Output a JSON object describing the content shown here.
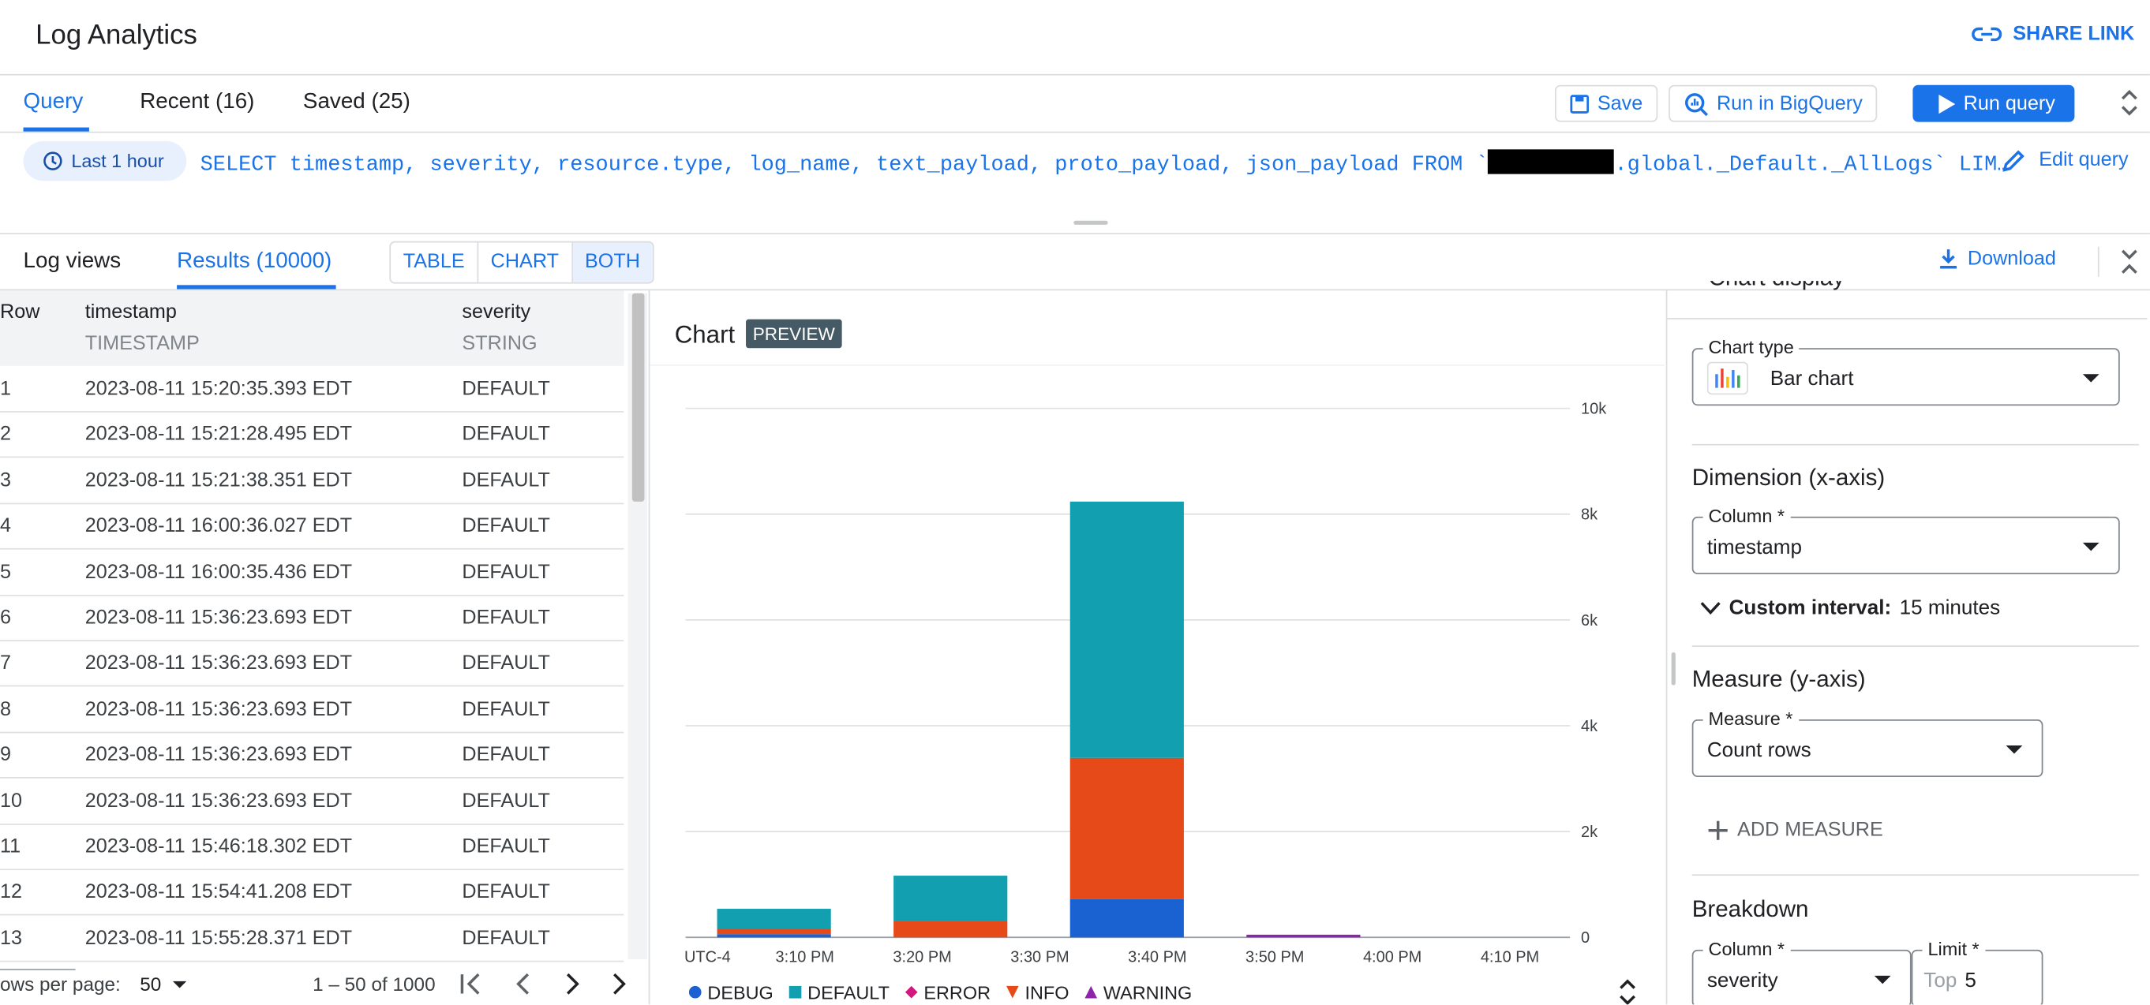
{
  "header": {
    "title": "Log Analytics",
    "share_link": "SHARE LINK"
  },
  "tabs": [
    "Query",
    "Recent (16)",
    "Saved (25)"
  ],
  "actions": {
    "save": "Save",
    "bigquery": "Run in BigQuery",
    "run": "Run query"
  },
  "query": {
    "time_range": "Last 1 hour",
    "sql_start": "SELECT timestamp, severity, resource.type, log_name, text_payload, proto_payload, json_payload FROM `",
    "sql_end": ".global._Default._AllLogs` LIM…",
    "edit": "Edit query"
  },
  "results_tabs": [
    "Log views",
    "Results (10000)"
  ],
  "view_toggle": [
    "TABLE",
    "CHART",
    "BOTH"
  ],
  "download": "Download",
  "table": {
    "columns": [
      {
        "name": "Row"
      },
      {
        "name": "timestamp",
        "type": "TIMESTAMP"
      },
      {
        "name": "severity",
        "type": "STRING"
      }
    ],
    "rows": [
      [
        1,
        "2023-08-11 15:20:35.393 EDT",
        "DEFAULT"
      ],
      [
        2,
        "2023-08-11 15:21:28.495 EDT",
        "DEFAULT"
      ],
      [
        3,
        "2023-08-11 15:21:38.351 EDT",
        "DEFAULT"
      ],
      [
        4,
        "2023-08-11 16:00:36.027 EDT",
        "DEFAULT"
      ],
      [
        5,
        "2023-08-11 16:00:35.436 EDT",
        "DEFAULT"
      ],
      [
        6,
        "2023-08-11 15:36:23.693 EDT",
        "DEFAULT"
      ],
      [
        7,
        "2023-08-11 15:36:23.693 EDT",
        "DEFAULT"
      ],
      [
        8,
        "2023-08-11 15:36:23.693 EDT",
        "DEFAULT"
      ],
      [
        9,
        "2023-08-11 15:36:23.693 EDT",
        "DEFAULT"
      ],
      [
        10,
        "2023-08-11 15:36:23.693 EDT",
        "DEFAULT"
      ],
      [
        11,
        "2023-08-11 15:46:18.302 EDT",
        "DEFAULT"
      ],
      [
        12,
        "2023-08-11 15:54:41.208 EDT",
        "DEFAULT"
      ],
      [
        13,
        "2023-08-11 15:55:28.371 EDT",
        "DEFAULT"
      ]
    ]
  },
  "pagination": {
    "rows_per_page_label": "ows per page:",
    "rows_per_page": 50,
    "range": "1 – 50 of 1000"
  },
  "chart_panel": {
    "title": "Chart",
    "badge": "PREVIEW"
  },
  "chart_data": {
    "type": "bar",
    "stacked": true,
    "categories": [
      null,
      null,
      null,
      null
    ],
    "x_tick_labels": [
      "UTC-4",
      "3:10 PM",
      "3:20 PM",
      "3:30 PM",
      "3:40 PM",
      "3:50 PM",
      "4:00 PM",
      "4:10 PM"
    ],
    "ylim": [
      0,
      10000
    ],
    "yticks": [
      0,
      {
        "value": 2000,
        "label": "2k"
      },
      {
        "value": 4000,
        "label": "4k"
      },
      {
        "value": 6000,
        "label": "6k"
      },
      {
        "value": 8000,
        "label": "8k"
      },
      {
        "value": 10000,
        "label": "10k"
      }
    ],
    "grid": true,
    "series": [
      {
        "name": "DEBUG",
        "color": "#1a62d2",
        "marker": "circle",
        "values": [
          60,
          null,
          725,
          null
        ]
      },
      {
        "name": "DEFAULT",
        "color": "#12a0b0",
        "marker": "square",
        "values": [
          380,
          856,
          4845,
          null
        ]
      },
      {
        "name": "ERROR",
        "color": "#d0187f",
        "marker": "diamond",
        "values": [
          null,
          null,
          null,
          null
        ]
      },
      {
        "name": "INFO",
        "color": "#e64a19",
        "marker": "triangle-down",
        "values": [
          100,
          310,
          2668,
          null
        ]
      },
      {
        "name": "WARNING",
        "color": "#8e24aa",
        "marker": "triangle-up",
        "values": [
          null,
          null,
          null,
          50
        ]
      }
    ]
  },
  "settings": {
    "section_heading": "Chart display",
    "chart_type_label": "Chart type",
    "chart_type": "Bar chart",
    "dimension_heading": "Dimension (x-axis)",
    "column_label": "Column *",
    "column_value": "timestamp",
    "custom_interval_label": "Custom interval:",
    "custom_interval_value": "15 minutes",
    "measure_heading": "Measure (y-axis)",
    "measure_label": "Measure *",
    "measure_value": "Count rows",
    "add_measure": "ADD MEASURE",
    "breakdown_heading": "Breakdown",
    "breakdown_column_label": "Column *",
    "breakdown_column_value": "severity",
    "limit_label": "Limit *",
    "limit_prefix": "Top",
    "limit_value": 5
  }
}
